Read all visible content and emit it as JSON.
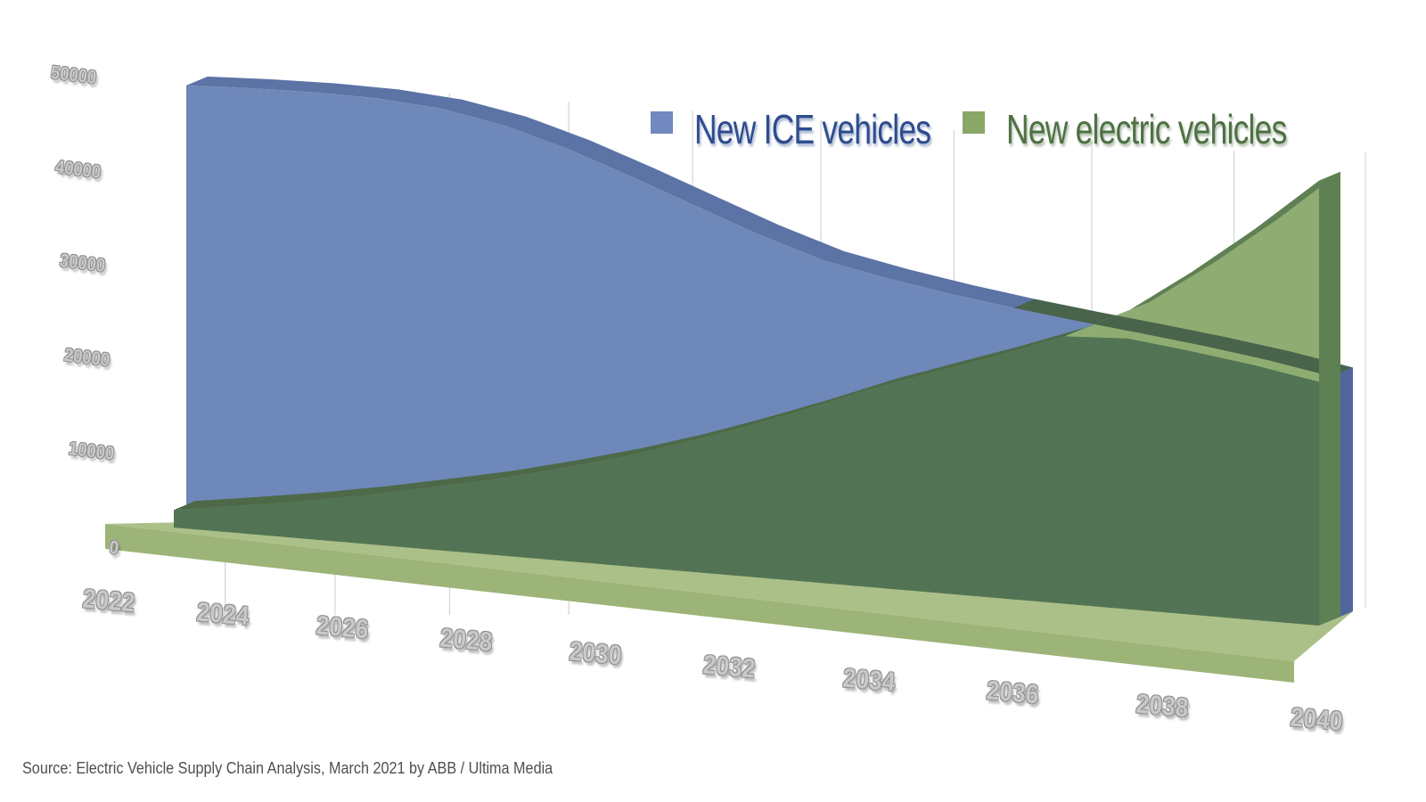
{
  "chart_data": {
    "type": "area",
    "style": "3d-perspective-area",
    "title": "",
    "xlabel": "",
    "ylabel": "",
    "x": [
      2022,
      2023,
      2024,
      2025,
      2026,
      2027,
      2028,
      2029,
      2030,
      2031,
      2032,
      2033,
      2034,
      2035,
      2036,
      2037,
      2038,
      2039,
      2040
    ],
    "x_tick_labels": [
      "2022",
      "2024",
      "2026",
      "2028",
      "2030",
      "2032",
      "2034",
      "2036",
      "2038",
      "2040"
    ],
    "y_ticks": [
      0,
      10000,
      20000,
      30000,
      40000,
      50000
    ],
    "y_tick_labels": [
      "0",
      "10000",
      "20000",
      "30000",
      "40000",
      "50000"
    ],
    "ylim": [
      0,
      50000
    ],
    "grid": true,
    "legend_position": "top-center",
    "series": [
      {
        "name": "New ICE vehicles",
        "color": "#6e88ba",
        "top_edge_color": "#5c73a5",
        "side_color": "#4f659b",
        "values": [
          49500,
          49300,
          49000,
          48500,
          47600,
          46000,
          43700,
          41000,
          38200,
          35500,
          33200,
          31800,
          30700,
          29800,
          29100,
          28500,
          27900,
          27200,
          26300
        ]
      },
      {
        "name": "New electric vehicles",
        "color": "#8fad72",
        "top_edge_color": "#5f8054",
        "side_color": "#5e8053",
        "overlap_color": "#537454",
        "values": [
          2000,
          2700,
          3500,
          4500,
          5700,
          7000,
          8600,
          10400,
          12500,
          14900,
          17500,
          20300,
          22800,
          25300,
          28000,
          31500,
          36500,
          42000,
          48000
        ]
      }
    ],
    "crossover_year": 2036,
    "floor_top_color": "#abc088",
    "floor_front_color": "#9cb478",
    "gridline_color": "#d4d4d4"
  },
  "legend": {
    "items": [
      {
        "label": "New ICE vehicles",
        "swatch_color": "#7189bf",
        "text_color": "#2e4c8e"
      },
      {
        "label": "New electric vehicles",
        "swatch_color": "#8aa768",
        "text_color": "#4e7144"
      }
    ]
  },
  "source_note": "Source: Electric Vehicle Supply Chain Analysis, March 2021 by ABB / Ultima Media"
}
